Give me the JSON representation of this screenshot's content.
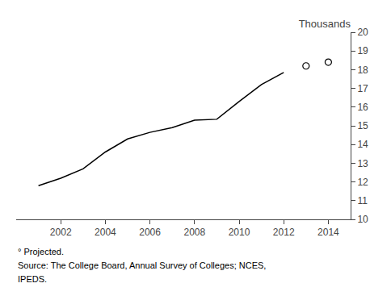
{
  "chart_data": {
    "type": "line",
    "title": "Thousands",
    "x": [
      2001,
      2002,
      2003,
      2004,
      2005,
      2006,
      2007,
      2008,
      2009,
      2010,
      2011,
      2012,
      2013,
      2014
    ],
    "series": [
      {
        "values": [
          11.8,
          12.2,
          12.7,
          13.6,
          14.3,
          14.65,
          14.9,
          15.3,
          15.35,
          16.3,
          17.2,
          17.85,
          null,
          null
        ],
        "color": "#000000",
        "line_style": "solid"
      },
      {
        "values": [
          null,
          null,
          null,
          null,
          null,
          null,
          null,
          null,
          null,
          null,
          null,
          null,
          18.2,
          18.4
        ],
        "color": "#000000",
        "marker": "circle-open"
      }
    ],
    "xlim": [
      2000,
      2015
    ],
    "ylim": [
      10,
      20
    ],
    "xticks": [
      2002,
      2004,
      2006,
      2008,
      2010,
      2012,
      2014
    ],
    "yticks": [
      10,
      11,
      12,
      13,
      14,
      15,
      16,
      17,
      18,
      19,
      20
    ],
    "grid": false,
    "annotations": [
      "° Projected.",
      "Source: The College Board, Annual Survey of Colleges; NCES,",
      "IPEDS."
    ]
  }
}
